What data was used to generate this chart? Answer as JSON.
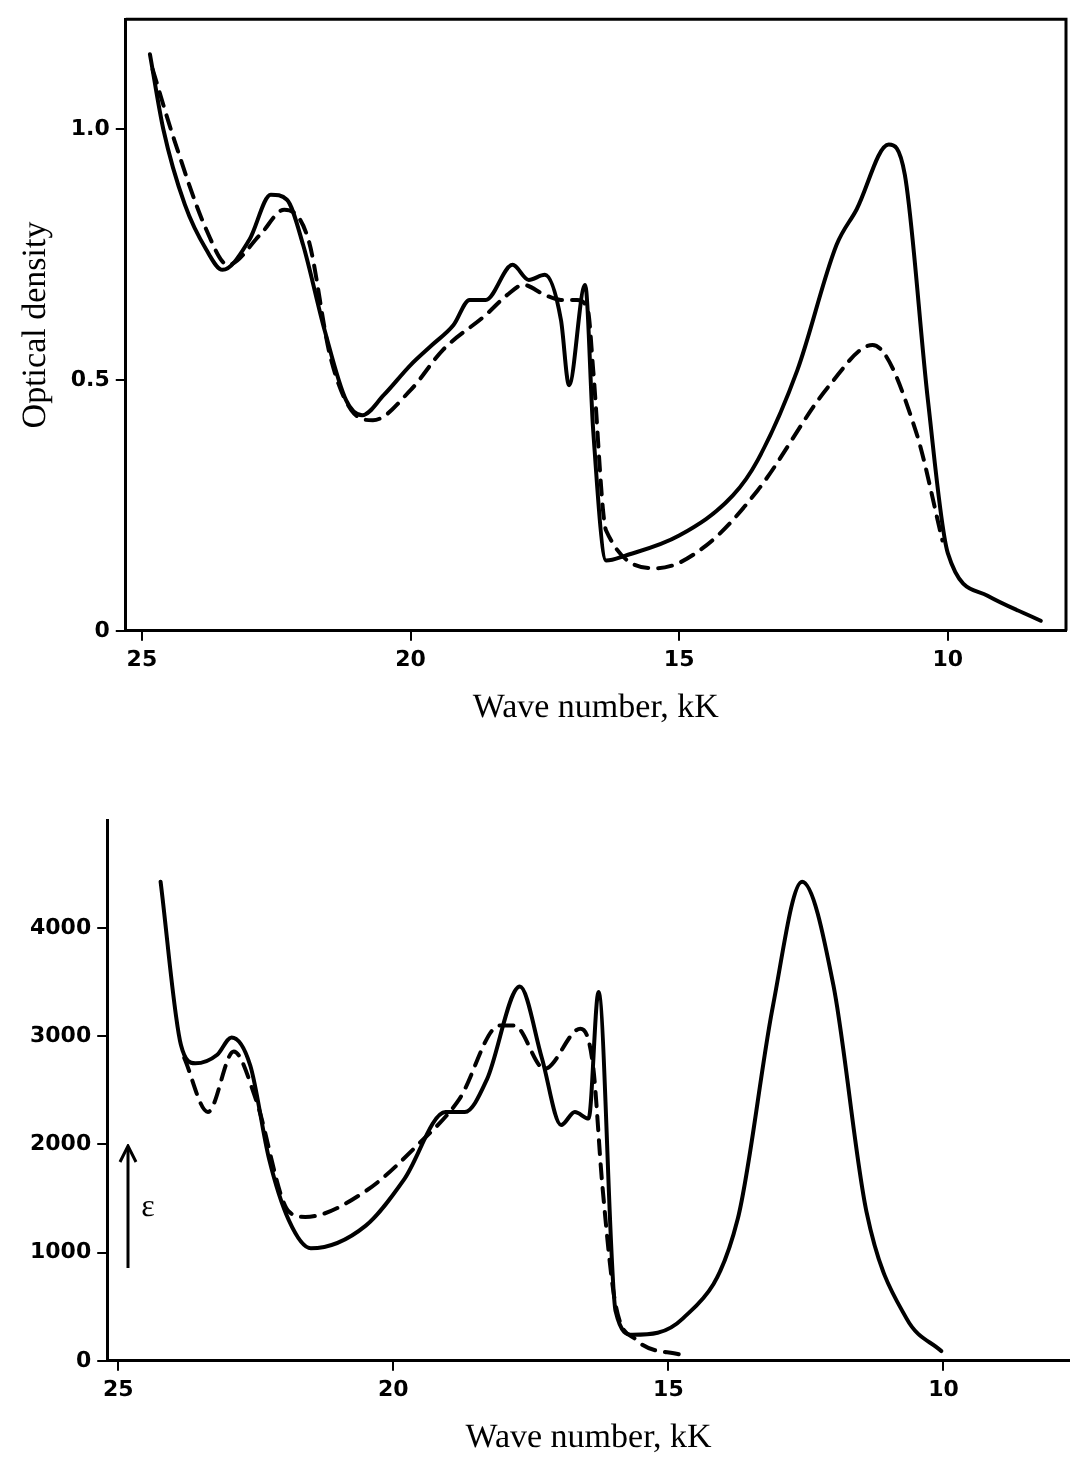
{
  "chart_data": [
    {
      "type": "line",
      "ylabel": "Optical density",
      "xlabel": "Wave number, kK",
      "xlim": [
        25.3,
        7.8
      ],
      "xticks": [
        25,
        20,
        15,
        10
      ],
      "ylim": [
        0,
        1.22
      ],
      "yticks": [
        0,
        {
          "value": 0.5,
          "label": "0.5"
        },
        {
          "value": 1,
          "label": "1.0"
        }
      ],
      "grid": false,
      "legend": false,
      "marker": "none",
      "series": [
        {
          "color": "#000000",
          "line_style": "solid",
          "x": [
            24.85,
            24.6,
            24.2,
            23.8,
            23.5,
            23.0,
            22.6,
            22.3,
            22.0,
            21.6,
            21.2,
            20.9,
            20.5,
            20.0,
            19.6,
            19.2,
            18.9,
            18.6,
            18.1,
            17.8,
            17.5,
            17.2,
            17.05,
            16.75,
            16.6,
            16.36,
            16.0,
            15.0,
            14.0,
            13.54,
            12.8,
            12.07,
            11.7,
            11.1,
            10.8,
            10.37,
            10.0,
            9.26,
            8.27
          ],
          "values": [
            1.15,
            1.0,
            0.85,
            0.76,
            0.72,
            0.78,
            0.87,
            0.86,
            0.77,
            0.6,
            0.46,
            0.43,
            0.47,
            0.53,
            0.57,
            0.61,
            0.66,
            0.66,
            0.73,
            0.7,
            0.71,
            0.62,
            0.49,
            0.69,
            0.4,
            0.14,
            0.15,
            0.19,
            0.27,
            0.34,
            0.52,
            0.77,
            0.84,
            0.97,
            0.91,
            0.46,
            0.155,
            0.07,
            0.02
          ]
        },
        {
          "color": "#000000",
          "line_style": "dashed",
          "axis": "y",
          "x": [
            24.8,
            24.4,
            23.8,
            23.4,
            22.8,
            22.35,
            21.9,
            21.5,
            21.1,
            20.7,
            20.0,
            19.4,
            18.6,
            18.2,
            17.9,
            17.5,
            17.2,
            16.9,
            16.7,
            16.6,
            16.36,
            15.4,
            14.5,
            13.54,
            12.2,
            11.4,
            10.6,
            10.1
          ],
          "values": [
            1.12,
            0.98,
            0.8,
            0.73,
            0.79,
            0.84,
            0.78,
            0.55,
            0.44,
            0.42,
            0.48,
            0.56,
            0.63,
            0.67,
            0.69,
            0.67,
            0.66,
            0.66,
            0.64,
            0.52,
            0.2,
            0.125,
            0.17,
            0.28,
            0.49,
            0.57,
            0.4,
            0.18
          ]
        }
      ]
    },
    {
      "type": "line",
      "ylabel": "ε",
      "xlabel": "Wave number, kK",
      "xlim": [
        25.2,
        7.7
      ],
      "xticks": [
        25,
        20,
        15,
        10
      ],
      "ylim": [
        0,
        5000
      ],
      "yticks": [
        0,
        1000,
        2000,
        3000,
        4000
      ],
      "grid": false,
      "legend": false,
      "marker": "none",
      "series": [
        {
          "color": "#000000",
          "line_style": "solid",
          "x": [
            24.23,
            23.86,
            23.6,
            23.2,
            22.94,
            22.6,
            22.26,
            21.9,
            21.5,
            20.5,
            19.8,
            19.05,
            18.7,
            18.3,
            17.7,
            17.3,
            16.95,
            16.7,
            16.45,
            16.27,
            15.96,
            15.65,
            14.74,
            13.74,
            13.1,
            12.57,
            12.0,
            11.4,
            10.67,
            10.04
          ],
          "values": [
            4430,
            2920,
            2750,
            2830,
            2990,
            2730,
            1870,
            1300,
            1040,
            1250,
            1680,
            2300,
            2300,
            2600,
            3460,
            2800,
            2180,
            2300,
            2240,
            3410,
            460,
            240,
            390,
            1310,
            3280,
            4430,
            3470,
            1380,
            390,
            90
          ]
        },
        {
          "color": "#000000",
          "line_style": "dashed",
          "x": [
            23.8,
            23.37,
            22.9,
            22.5,
            21.9,
            21.6,
            20.5,
            19.55,
            18.8,
            18.07,
            17.8,
            17.25,
            16.6,
            16.37,
            16.2,
            15.96,
            15.6,
            14.74
          ],
          "values": [
            2800,
            2300,
            2860,
            2420,
            1380,
            1330,
            1570,
            2000,
            2420,
            3100,
            3100,
            2700,
            3070,
            2730,
            1620,
            520,
            200,
            50
          ]
        }
      ]
    }
  ]
}
